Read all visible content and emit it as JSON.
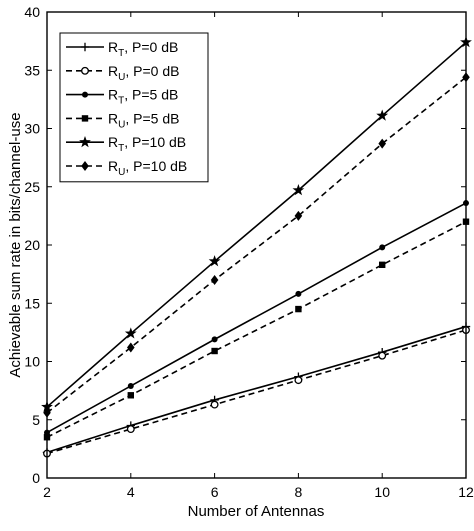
{
  "chart_data": {
    "type": "line",
    "title": "",
    "xlabel": "Number of Antennas",
    "ylabel": "Achievable sum rate in bits/channel-use",
    "xlim": [
      2,
      12
    ],
    "ylim": [
      0,
      40
    ],
    "x_ticks": [
      "2",
      "4",
      "6",
      "8",
      "10",
      "12"
    ],
    "y_ticks": [
      "0",
      "5",
      "10",
      "15",
      "20",
      "25",
      "30",
      "35",
      "40"
    ],
    "grid": false,
    "legend_position": "top-left",
    "x": [
      2,
      4,
      6,
      8,
      10,
      12
    ],
    "series": [
      {
        "name": "R_T, P=0 dB",
        "label_main": "R",
        "label_sub": "T",
        "label_rest": ", P=0 dB",
        "style": "solid",
        "marker": "plus",
        "values": [
          2.2,
          4.5,
          6.7,
          8.7,
          10.8,
          13.0
        ]
      },
      {
        "name": "R_U, P=0 dB",
        "label_main": "R",
        "label_sub": "U",
        "label_rest": ", P=0 dB",
        "style": "dashed",
        "marker": "circle",
        "values": [
          2.1,
          4.2,
          6.3,
          8.4,
          10.5,
          12.7
        ]
      },
      {
        "name": "R_T, P=5 dB",
        "label_main": "R",
        "label_sub": "T",
        "label_rest": ", P=5 dB",
        "style": "solid",
        "marker": "dot",
        "values": [
          3.9,
          7.9,
          11.9,
          15.8,
          19.8,
          23.6
        ]
      },
      {
        "name": "R_U, P=5 dB",
        "label_main": "R",
        "label_sub": "U",
        "label_rest": ", P=5 dB",
        "style": "dashed",
        "marker": "square",
        "values": [
          3.5,
          7.1,
          10.9,
          14.5,
          18.3,
          22.0
        ]
      },
      {
        "name": "R_T, P=10 dB",
        "label_main": "R",
        "label_sub": "T",
        "label_rest": ", P=10 dB",
        "style": "solid",
        "marker": "star",
        "values": [
          6.1,
          12.4,
          18.6,
          24.7,
          31.1,
          37.4
        ]
      },
      {
        "name": "R_U, P=10 dB",
        "label_main": "R",
        "label_sub": "U",
        "label_rest": ", P=10 dB",
        "style": "dashed",
        "marker": "diamond",
        "values": [
          5.6,
          11.2,
          17.0,
          22.5,
          28.7,
          34.4
        ]
      }
    ]
  }
}
